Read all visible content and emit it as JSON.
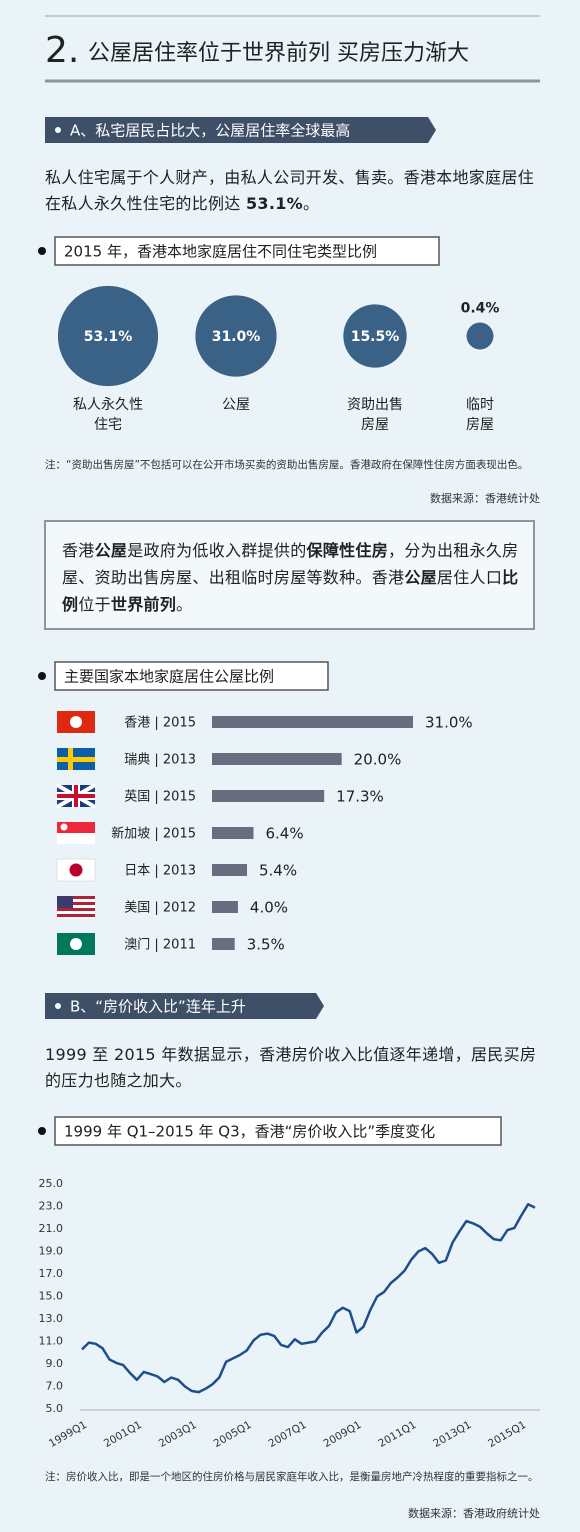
{
  "header": {
    "number": "2.",
    "title": "公屋居住率位于世界前列 买房压力渐大"
  },
  "section_a": {
    "title": "A、私宅居民占比大，公屋居住率全球最高",
    "paragraph": [
      {
        "text": "私人住宅属于个人财产，由私人公司开发、售卖。香港本地家庭居住在私人永久性住宅的比例达 "
      },
      {
        "text": "53.1%",
        "bold": true
      },
      {
        "text": "。"
      }
    ]
  },
  "callout": [
    {
      "text": "香港"
    },
    {
      "text": "公屋",
      "bold": true
    },
    {
      "text": "是政府为低收入群提供的"
    },
    {
      "text": "保障性住房",
      "bold": true
    },
    {
      "text": "，分为出租永久房屋、资助出售房屋、出租临时房屋等数种。香港"
    },
    {
      "text": "公屋",
      "bold": true
    },
    {
      "text": "居住人口"
    },
    {
      "text": "比例",
      "bold": true
    },
    {
      "text": "位于"
    },
    {
      "text": "世界前列",
      "bold": true
    },
    {
      "text": "。"
    }
  ],
  "section_b": {
    "title": "B、“房价收入比”连年上升",
    "paragraph": [
      {
        "text": "1999 至 2015 年数据显示，香港房价收入比值逐年递增，居民买房的压力也随之加大。"
      }
    ]
  },
  "chart_data": [
    {
      "type": "bubble",
      "title": "2015 年，香港本地家庭居住不同住宅类型比例",
      "categories": [
        "私人永久性住宅",
        "公屋",
        "资助出售房屋",
        "临时房屋"
      ],
      "values": [
        53.1,
        31.0,
        15.5,
        0.4
      ],
      "value_labels": [
        "53.1%",
        "31.0%",
        "15.5%",
        "0.4%"
      ],
      "color": "#3a6186",
      "note": "注：“资助出售房屋”不包括可以在公开市场买卖的资助出售房屋。香港政府在保障性住房方面表现出色。",
      "source": "数据来源：香港统计处"
    },
    {
      "type": "hbar",
      "title": "主要国家本地家庭居住公屋比例",
      "categories": [
        "香港 | 2015",
        "瑞典 | 2013",
        "英国 | 2015",
        "新加坡 | 2015",
        "日本 | 2013",
        "美国 | 2012",
        "澳门 | 2011"
      ],
      "values": [
        31.0,
        20.0,
        17.3,
        6.4,
        5.4,
        4.0,
        3.5
      ],
      "value_labels": [
        "31.0%",
        "20.0%",
        "17.3%",
        "6.4%",
        "5.4%",
        "4.0%",
        "3.5%"
      ],
      "color": "#6a6d80"
    },
    {
      "type": "line",
      "title": "1999 年 Q1–2015 年 Q3，香港“房价收入比”季度变化",
      "categories": [
        "1999Q1",
        null,
        null,
        null,
        null,
        null,
        null,
        null,
        "2001Q1",
        null,
        null,
        null,
        null,
        null,
        null,
        null,
        "2003Q1",
        null,
        null,
        null,
        null,
        null,
        null,
        null,
        "2005Q1",
        null,
        null,
        null,
        null,
        null,
        null,
        null,
        "2007Q1",
        null,
        null,
        null,
        null,
        null,
        null,
        null,
        "2009Q1",
        null,
        null,
        null,
        null,
        null,
        null,
        null,
        "2011Q1",
        null,
        null,
        null,
        null,
        null,
        null,
        null,
        "2013Q1",
        null,
        null,
        null,
        null,
        null,
        null,
        null,
        "2015Q1",
        null,
        null
      ],
      "series": [
        {
          "color": "#1f4e8c",
          "values": [
            10.3,
            10.9,
            10.8,
            10.4,
            9.4,
            9.1,
            8.9,
            8.2,
            7.6,
            8.3,
            8.1,
            7.9,
            7.4,
            7.8,
            7.6,
            7.0,
            6.6,
            6.5,
            6.8,
            7.2,
            7.8,
            9.2,
            9.5,
            9.8,
            10.2,
            11.1,
            11.6,
            11.7,
            11.5,
            10.7,
            10.5,
            11.2,
            10.8,
            10.9,
            11.0,
            11.8,
            12.4,
            13.6,
            14.0,
            13.7,
            11.8,
            12.3,
            13.8,
            15.0,
            15.4,
            16.2,
            16.7,
            17.3,
            18.3,
            19.0,
            19.3,
            18.8,
            18.0,
            18.2,
            19.8,
            20.8,
            21.7,
            21.5,
            21.2,
            20.6,
            20.1,
            20.0,
            20.9,
            21.1,
            22.2,
            23.2,
            22.9
          ]
        }
      ],
      "ylim": [
        5,
        25
      ],
      "yticks": [
        {
          "value": 5,
          "label": "5.0"
        },
        {
          "value": 7,
          "label": "7.0"
        },
        {
          "value": 9,
          "label": "9.0"
        },
        {
          "value": 11,
          "label": "11.0"
        },
        {
          "value": 13,
          "label": "13.0"
        },
        {
          "value": 15,
          "label": "15.0"
        },
        {
          "value": 17,
          "label": "17.0"
        },
        {
          "value": 19,
          "label": "19.0"
        },
        {
          "value": 21,
          "label": "21.0"
        },
        {
          "value": 23,
          "label": "23.0"
        },
        {
          "value": 25,
          "label": "25.0"
        }
      ],
      "grid": false,
      "note": "注：房价收入比，即是一个地区的住房价格与居民家庭年收入比，是衡量房地产冷热程度的重要指标之一。",
      "source": "数据来源：香港政府统计处"
    }
  ]
}
